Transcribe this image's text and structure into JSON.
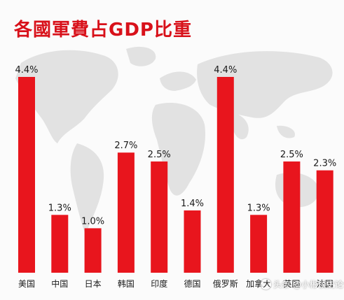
{
  "title": "各國軍費占GDP比重",
  "watermark": "头条 @小彬谈史论今",
  "colors": {
    "bar": "#e8151d",
    "title": "#d8111a",
    "map": "#e2e2e2",
    "text": "#1a1a1a"
  },
  "chart_data": {
    "type": "bar",
    "title": "各國軍費占GDP比重",
    "categories": [
      "美国",
      "中国",
      "日本",
      "韩国",
      "印度",
      "德国",
      "俄罗斯",
      "加拿大",
      "英国",
      "法国"
    ],
    "values": [
      4.4,
      1.3,
      1.0,
      2.7,
      2.5,
      1.4,
      4.4,
      1.3,
      2.5,
      2.3
    ],
    "value_labels": [
      "4.4%",
      "1.3%",
      "1.0%",
      "2.7%",
      "2.5%",
      "1.4%",
      "4.4%",
      "1.3%",
      "2.5%",
      "2.3%"
    ],
    "unit": "%",
    "ylim": [
      0,
      4.4
    ],
    "grid": false,
    "legend": "none",
    "background": "world-map"
  }
}
